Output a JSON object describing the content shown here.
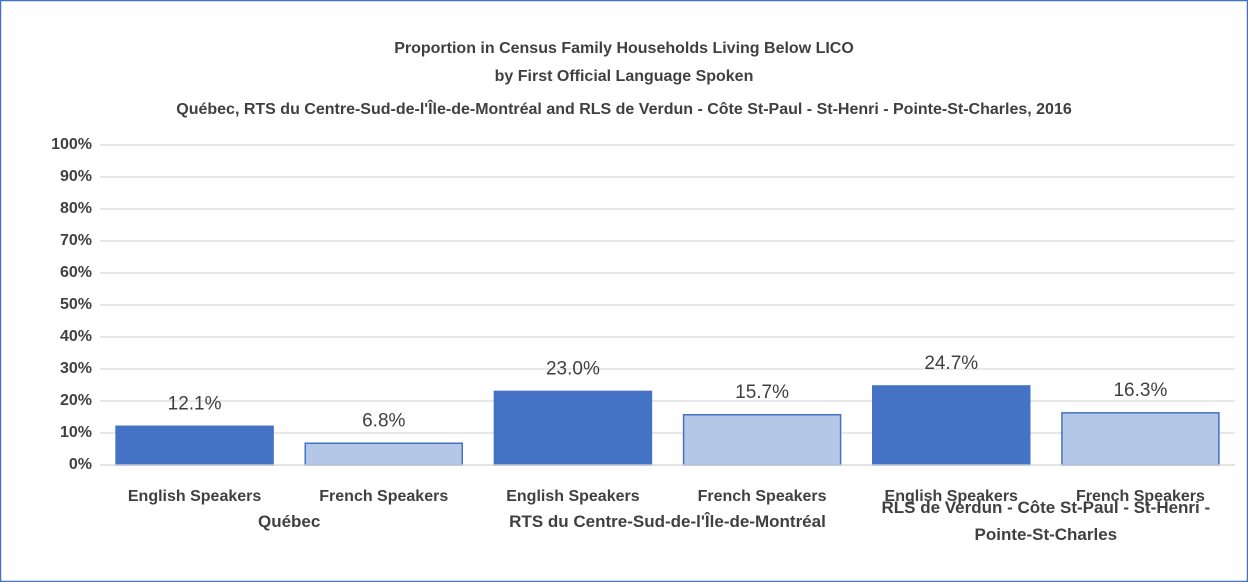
{
  "chart_data": {
    "type": "bar",
    "title": [
      "Proportion in Census Family Households Living Below LICO",
      "by First Official Language Spoken",
      "Québec, RTS du Centre-Sud-de-l'Île-de-Montréal and RLS de Verdun - Côte St-Paul - St-Henri - Pointe-St-Charles, 2016"
    ],
    "categories": [
      "Québec",
      "RTS du Centre-Sud-de-l'Île-de-Montréal",
      "RLS de Verdun - Côte St-Paul - St-Henri - Pointe-St-Charles"
    ],
    "series": [
      {
        "name": "English Speakers",
        "color": "#4472c4",
        "values": [
          12.1,
          23.0,
          24.7
        ],
        "value_labels": [
          "12.1%",
          "23.0%",
          "24.7%"
        ]
      },
      {
        "name": "French Speakers",
        "color": "#b4c7e7",
        "values": [
          6.8,
          15.7,
          16.3
        ],
        "value_labels": [
          "6.8%",
          "15.7%",
          "16.3%"
        ]
      }
    ],
    "ylim": [
      0,
      100
    ],
    "yticks": [
      {
        "value": 0,
        "label": "0%"
      },
      {
        "value": 10,
        "label": "10%"
      },
      {
        "value": 20,
        "label": "20%"
      },
      {
        "value": 30,
        "label": "30%"
      },
      {
        "value": 40,
        "label": "40%"
      },
      {
        "value": 50,
        "label": "50%"
      },
      {
        "value": 60,
        "label": "60%"
      },
      {
        "value": 70,
        "label": "70%"
      },
      {
        "value": 80,
        "label": "80%"
      },
      {
        "value": 90,
        "label": "90%"
      },
      {
        "value": 100,
        "label": "100%"
      }
    ],
    "grid": true
  }
}
